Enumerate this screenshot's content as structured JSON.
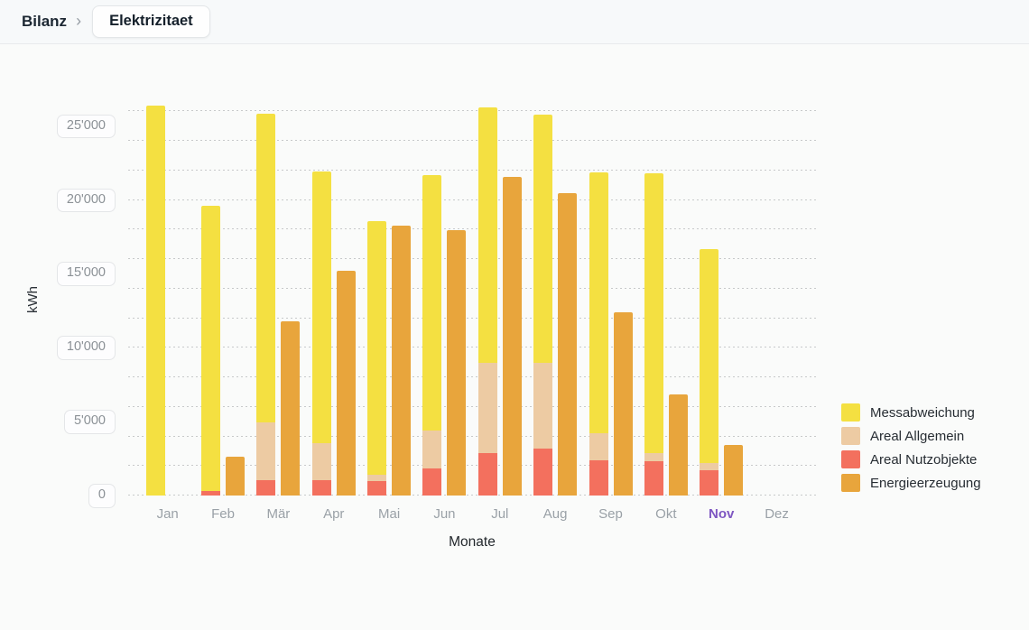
{
  "header": {
    "breadcrumb": "Bilanz",
    "separator": "›",
    "page_chip": "Elektrizitaet"
  },
  "chart_data": {
    "type": "bar",
    "title": "",
    "xlabel": "Monate",
    "ylabel": "kWh",
    "categories": [
      "Jan",
      "Feb",
      "Mär",
      "Apr",
      "Mai",
      "Jun",
      "Jul",
      "Aug",
      "Sep",
      "Okt",
      "Nov",
      "Dez"
    ],
    "highlighted_category": "Nov",
    "highlight_color": "#7e57c2",
    "y_tick_labels": [
      "0",
      "5'000",
      "10'000",
      "15'000",
      "20'000",
      "25'000"
    ],
    "y_tick_values": [
      0,
      5000,
      10000,
      15000,
      20000,
      25000
    ],
    "ylim": [
      0,
      26400
    ],
    "grid_step": 2000,
    "grid_max": 26000,
    "grid_on": true,
    "legend_position": "right",
    "series": [
      {
        "name": "Areal Nutzobjekte",
        "color": "#f3705e",
        "role": "stacked",
        "values": [
          0,
          300,
          1050,
          1050,
          950,
          1850,
          2900,
          3150,
          2400,
          2300,
          1700,
          0
        ]
      },
      {
        "name": "Areal Allgemein",
        "color": "#edcba3",
        "role": "stacked",
        "values": [
          0,
          0,
          3900,
          2500,
          450,
          2550,
          6050,
          5850,
          1800,
          600,
          500,
          0
        ]
      },
      {
        "name": "Messabweichung",
        "color": "#f4e041",
        "role": "stacked",
        "values": [
          26400,
          19300,
          20900,
          18400,
          17150,
          17250,
          17300,
          16800,
          17650,
          18900,
          14450,
          0
        ]
      },
      {
        "name": "Energieerzeugung",
        "color": "#e8a53c",
        "role": "side",
        "values": [
          0,
          2600,
          11800,
          15200,
          18250,
          17950,
          21550,
          20450,
          12400,
          6850,
          3450,
          0
        ]
      }
    ],
    "legend": [
      {
        "label": "Messabweichung",
        "color": "#f4e041"
      },
      {
        "label": "Areal Allgemein",
        "color": "#edcba3"
      },
      {
        "label": "Areal Nutzobjekte",
        "color": "#f3705e"
      },
      {
        "label": "Energieerzeugung",
        "color": "#e8a53c"
      }
    ]
  }
}
